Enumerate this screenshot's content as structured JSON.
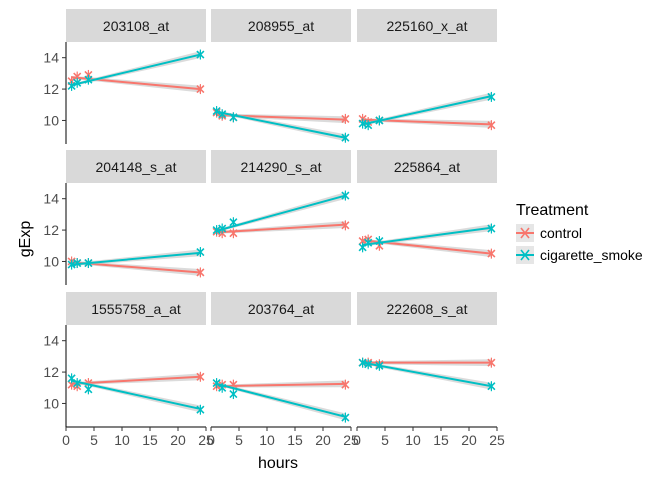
{
  "chart_data": {
    "type": "line",
    "xlabel": "hours",
    "ylabel": "gExp",
    "xlim": [
      0,
      25
    ],
    "ylim": [
      8.5,
      15
    ],
    "x_ticks": [
      0,
      5,
      10,
      15,
      20,
      25
    ],
    "y_ticks": [
      10,
      12,
      14
    ],
    "grid": false,
    "legend": {
      "title": "Treatment",
      "position": "right",
      "entries": [
        {
          "name": "control",
          "color": "#F8766D"
        },
        {
          "name": "cigarette_smoke",
          "color": "#00BFC4"
        }
      ]
    },
    "panels": [
      {
        "title": "203108_at",
        "series": [
          {
            "name": "control",
            "x": [
              1,
              2,
              4,
              24
            ],
            "y": [
              12.5,
              12.8,
              12.9,
              12.0
            ],
            "fit": [
              12.75,
              12.0
            ]
          },
          {
            "name": "cigarette_smoke",
            "x": [
              1,
              2,
              4,
              24
            ],
            "y": [
              12.2,
              12.4,
              12.6,
              14.2
            ],
            "fit": [
              12.25,
              14.2
            ]
          }
        ]
      },
      {
        "title": "208955_at",
        "series": [
          {
            "name": "control",
            "x": [
              1,
              2,
              4,
              24
            ],
            "y": [
              10.5,
              10.3,
              10.2,
              10.1
            ],
            "fit": [
              10.35,
              10.05
            ]
          },
          {
            "name": "cigarette_smoke",
            "x": [
              1,
              2,
              4,
              24
            ],
            "y": [
              10.6,
              10.4,
              10.2,
              8.9
            ],
            "fit": [
              10.55,
              8.9
            ]
          }
        ]
      },
      {
        "title": "225160_x_at",
        "series": [
          {
            "name": "control",
            "x": [
              1,
              2,
              4,
              24
            ],
            "y": [
              10.1,
              9.9,
              10.0,
              9.7
            ],
            "fit": [
              10.05,
              9.75
            ]
          },
          {
            "name": "cigarette_smoke",
            "x": [
              1,
              2,
              4,
              24
            ],
            "y": [
              9.8,
              9.7,
              10.0,
              11.5
            ],
            "fit": [
              9.75,
              11.55
            ]
          }
        ]
      },
      {
        "title": "204148_s_at",
        "series": [
          {
            "name": "control",
            "x": [
              1,
              2,
              4,
              24
            ],
            "y": [
              10.0,
              9.9,
              9.9,
              9.3
            ],
            "fit": [
              9.95,
              9.3
            ]
          },
          {
            "name": "cigarette_smoke",
            "x": [
              1,
              2,
              4,
              24
            ],
            "y": [
              9.8,
              9.9,
              9.9,
              10.6
            ],
            "fit": [
              9.8,
              10.55
            ]
          }
        ]
      },
      {
        "title": "214290_s_at",
        "series": [
          {
            "name": "control",
            "x": [
              1,
              2,
              4,
              24
            ],
            "y": [
              11.9,
              11.8,
              11.8,
              12.3
            ],
            "fit": [
              11.85,
              12.35
            ]
          },
          {
            "name": "cigarette_smoke",
            "x": [
              1,
              2,
              4,
              24
            ],
            "y": [
              12.0,
              12.1,
              12.5,
              14.2
            ],
            "fit": [
              11.95,
              14.2
            ]
          }
        ]
      },
      {
        "title": "225864_at",
        "series": [
          {
            "name": "control",
            "x": [
              1,
              2,
              4,
              24
            ],
            "y": [
              11.3,
              11.4,
              11.0,
              10.5
            ],
            "fit": [
              11.35,
              10.5
            ]
          },
          {
            "name": "cigarette_smoke",
            "x": [
              1,
              2,
              4,
              24
            ],
            "y": [
              10.9,
              11.2,
              11.3,
              12.1
            ],
            "fit": [
              11.05,
              12.15
            ]
          }
        ]
      },
      {
        "title": "1555758_a_at",
        "series": [
          {
            "name": "control",
            "x": [
              1,
              2,
              4,
              24
            ],
            "y": [
              11.2,
              11.1,
              11.3,
              11.7
            ],
            "fit": [
              11.25,
              11.7
            ]
          },
          {
            "name": "cigarette_smoke",
            "x": [
              1,
              2,
              4,
              24
            ],
            "y": [
              11.6,
              11.3,
              10.9,
              9.6
            ],
            "fit": [
              11.45,
              9.65
            ]
          }
        ]
      },
      {
        "title": "203764_at",
        "series": [
          {
            "name": "control",
            "x": [
              1,
              2,
              4,
              24
            ],
            "y": [
              11.1,
              11.2,
              11.2,
              11.2
            ],
            "fit": [
              11.1,
              11.25
            ]
          },
          {
            "name": "cigarette_smoke",
            "x": [
              1,
              2,
              4,
              24
            ],
            "y": [
              11.3,
              11.0,
              10.6,
              9.1
            ],
            "fit": [
              11.25,
              9.15
            ]
          }
        ]
      },
      {
        "title": "222608_s_at",
        "series": [
          {
            "name": "control",
            "x": [
              1,
              2,
              4,
              24
            ],
            "y": [
              12.6,
              12.6,
              12.5,
              12.6
            ],
            "fit": [
              12.6,
              12.6
            ]
          },
          {
            "name": "cigarette_smoke",
            "x": [
              1,
              2,
              4,
              24
            ],
            "y": [
              12.6,
              12.5,
              12.4,
              11.1
            ],
            "fit": [
              12.6,
              11.1
            ]
          }
        ]
      }
    ]
  }
}
